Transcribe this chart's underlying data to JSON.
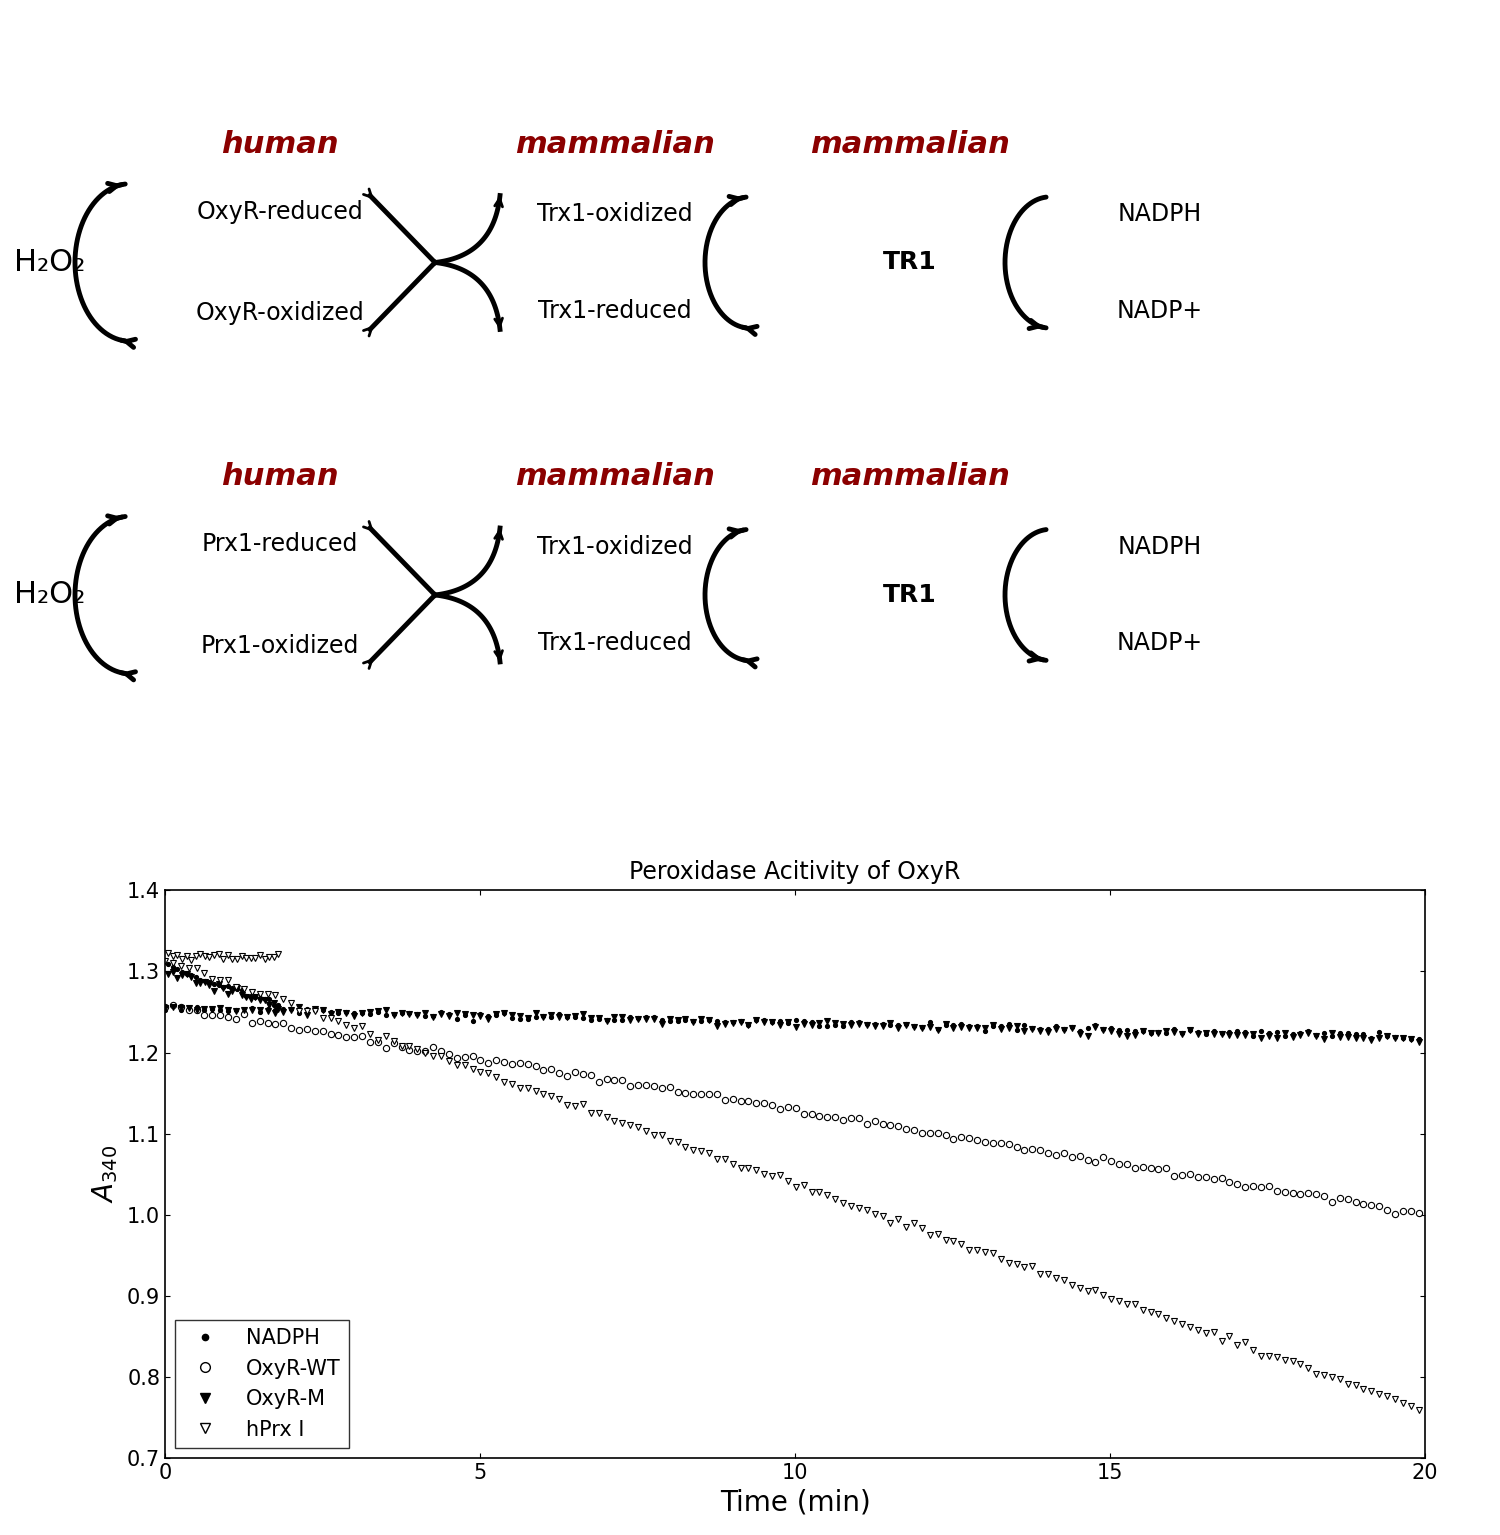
{
  "title": "Peroxidase Acitivity of OxyR",
  "xlabel": "Time (min)",
  "xlim": [
    0,
    20
  ],
  "ylim": [
    0.7,
    1.4
  ],
  "yticks": [
    0.7,
    0.8,
    0.9,
    1.0,
    1.1,
    1.2,
    1.3,
    1.4
  ],
  "xticks": [
    0,
    5,
    10,
    15,
    20
  ],
  "legend_entries": [
    "NADPH",
    "OxyR-WT",
    "OxyR-M",
    "hPrx I"
  ],
  "red_color": "#8B0000",
  "background_color": "#ffffff"
}
